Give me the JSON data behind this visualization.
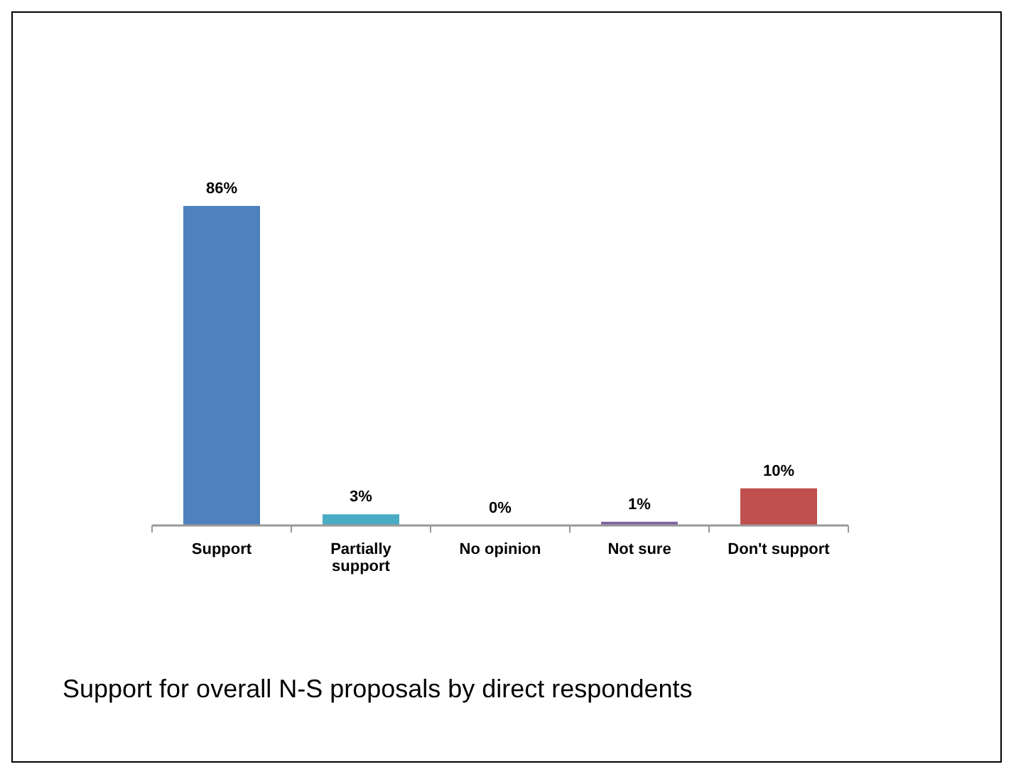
{
  "chart_data": {
    "type": "bar",
    "title": "Support for overall N-S proposals by direct respondents",
    "categories": [
      "Support",
      "Partially support",
      "No opinion",
      "Not sure",
      "Don't support"
    ],
    "values": [
      86,
      3,
      0,
      1,
      10
    ],
    "colors": [
      "#4f81bd",
      "#4bacc6",
      "#9bbb59",
      "#8064a2",
      "#c0504d"
    ],
    "value_labels": [
      "86%",
      "3%",
      "0%",
      "1%",
      "10%"
    ]
  }
}
